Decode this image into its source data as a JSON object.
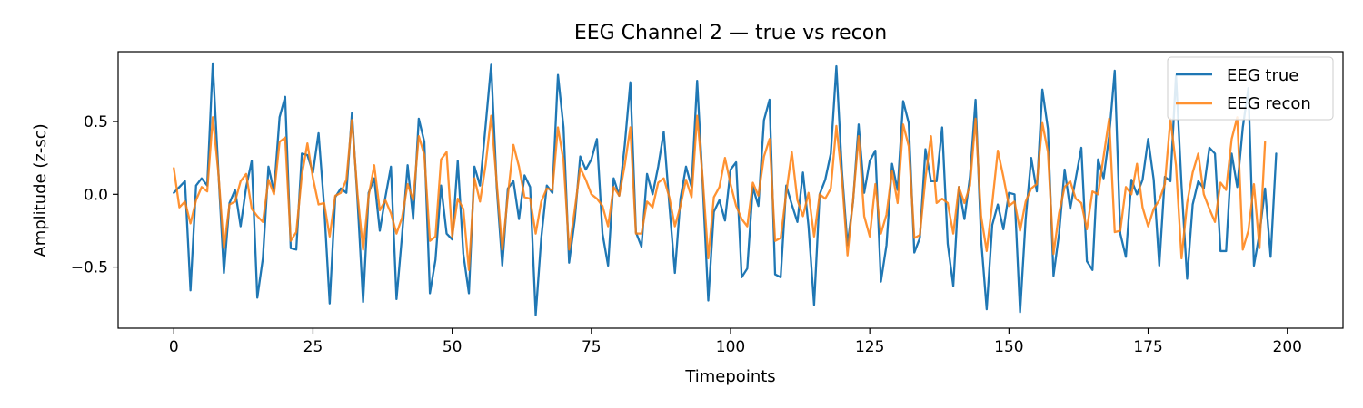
{
  "chart_data": {
    "type": "line",
    "title": "EEG Channel 2 — true vs recon",
    "xlabel": "Timepoints",
    "ylabel": "Amplitude (z-sc)",
    "xlim": [
      -10,
      210
    ],
    "ylim": [
      -0.92,
      0.98
    ],
    "xticks": [
      0,
      25,
      50,
      75,
      100,
      125,
      150,
      175,
      200
    ],
    "xtick_labels": [
      "0",
      "25",
      "50",
      "75",
      "100",
      "125",
      "150",
      "175",
      "200"
    ],
    "yticks": [
      -0.5,
      0.0,
      0.5
    ],
    "ytick_labels": [
      "−0.5",
      "0.0",
      "0.5"
    ],
    "grid": false,
    "legend_position": "top-right",
    "series": [
      {
        "name": "EEG true",
        "color": "#1f77b4",
        "values": [
          0.01,
          0.05,
          0.09,
          -0.66,
          0.06,
          0.11,
          0.06,
          0.9,
          0.16,
          -0.54,
          -0.06,
          0.03,
          -0.22,
          0.05,
          0.23,
          -0.71,
          -0.44,
          0.19,
          0.02,
          0.53,
          0.67,
          -0.37,
          -0.38,
          0.28,
          0.27,
          0.15,
          0.42,
          -0.08,
          -0.75,
          -0.02,
          0.04,
          0.01,
          0.56,
          -0.04,
          -0.74,
          0.01,
          0.11,
          -0.25,
          -0.02,
          0.19,
          -0.72,
          -0.28,
          0.2,
          -0.17,
          0.52,
          0.36,
          -0.68,
          -0.45,
          0.06,
          -0.27,
          -0.31,
          0.23,
          -0.41,
          -0.68,
          0.19,
          0.06,
          0.47,
          0.89,
          0.05,
          -0.49,
          0.04,
          0.09,
          -0.17,
          0.13,
          0.05,
          -0.83,
          -0.3,
          0.06,
          0.01,
          0.82,
          0.46,
          -0.47,
          -0.18,
          0.26,
          0.17,
          0.24,
          0.38,
          -0.27,
          -0.49,
          0.11,
          -0.01,
          0.34,
          0.77,
          -0.26,
          -0.36,
          0.14,
          0.0,
          0.19,
          0.43,
          -0.07,
          -0.54,
          -0.03,
          0.19,
          0.05,
          0.78,
          0.07,
          -0.73,
          -0.12,
          -0.04,
          -0.18,
          0.17,
          0.22,
          -0.57,
          -0.51,
          0.05,
          -0.08,
          0.51,
          0.65,
          -0.55,
          -0.57,
          0.06,
          -0.07,
          -0.19,
          0.15,
          -0.22,
          -0.76,
          0.0,
          0.1,
          0.28,
          0.88,
          0.16,
          -0.35,
          -0.05,
          0.48,
          0.01,
          0.23,
          0.3,
          -0.6,
          -0.35,
          0.21,
          0.03,
          0.64,
          0.49,
          -0.4,
          -0.3,
          0.31,
          0.09,
          0.09,
          0.46,
          -0.34,
          -0.63,
          0.05,
          -0.17,
          0.12,
          0.65,
          -0.31,
          -0.79,
          -0.21,
          -0.07,
          -0.24,
          0.01,
          0.0,
          -0.81,
          -0.17,
          0.25,
          0.02,
          0.72,
          0.45,
          -0.56,
          -0.27,
          0.17,
          -0.1,
          0.11,
          0.32,
          -0.46,
          -0.52,
          0.24,
          0.11,
          0.4,
          0.85,
          -0.27,
          -0.43,
          0.1,
          0.0,
          0.1,
          0.38,
          0.1,
          -0.49,
          0.12,
          0.09,
          0.82,
          0.06,
          -0.58,
          -0.07,
          0.09,
          0.04,
          0.32,
          0.28,
          -0.39,
          -0.39,
          0.28,
          0.05,
          0.46,
          0.73,
          -0.49,
          -0.27,
          0.04,
          -0.43,
          0.28
        ]
      },
      {
        "name": "EEG recon",
        "color": "#ff7f0e",
        "values": [
          0.18,
          -0.09,
          -0.05,
          -0.2,
          -0.04,
          0.05,
          0.02,
          0.53,
          0.15,
          -0.37,
          -0.07,
          -0.05,
          0.09,
          0.14,
          -0.1,
          -0.15,
          -0.19,
          0.1,
          0.0,
          0.36,
          0.39,
          -0.32,
          -0.26,
          0.13,
          0.35,
          0.11,
          -0.07,
          -0.06,
          -0.29,
          -0.01,
          0.01,
          0.1,
          0.51,
          0.0,
          -0.38,
          -0.01,
          0.2,
          -0.11,
          -0.04,
          -0.13,
          -0.27,
          -0.16,
          0.07,
          -0.04,
          0.4,
          0.27,
          -0.32,
          -0.29,
          0.24,
          0.29,
          -0.29,
          -0.03,
          -0.1,
          -0.52,
          0.11,
          -0.05,
          0.2,
          0.54,
          0.08,
          -0.38,
          -0.01,
          0.34,
          0.19,
          -0.02,
          -0.03,
          -0.27,
          -0.05,
          0.04,
          0.03,
          0.46,
          0.23,
          -0.38,
          -0.11,
          0.18,
          0.1,
          0.0,
          -0.03,
          -0.08,
          -0.22,
          0.05,
          -0.01,
          0.2,
          0.46,
          -0.27,
          -0.27,
          -0.05,
          -0.09,
          0.08,
          0.11,
          -0.02,
          -0.22,
          -0.08,
          0.1,
          -0.02,
          0.54,
          0.11,
          -0.44,
          -0.02,
          0.05,
          0.25,
          0.07,
          -0.08,
          -0.17,
          -0.22,
          0.08,
          -0.01,
          0.26,
          0.38,
          -0.32,
          -0.3,
          0.01,
          0.29,
          -0.04,
          -0.15,
          0.01,
          -0.29,
          0.0,
          -0.03,
          0.04,
          0.47,
          0.11,
          -0.42,
          -0.04,
          0.4,
          -0.15,
          -0.29,
          0.07,
          -0.27,
          -0.14,
          0.16,
          -0.06,
          0.48,
          0.33,
          -0.3,
          -0.28,
          0.11,
          0.4,
          -0.06,
          -0.03,
          -0.06,
          -0.27,
          0.05,
          -0.06,
          0.06,
          0.52,
          -0.15,
          -0.39,
          -0.06,
          0.3,
          0.12,
          -0.08,
          -0.05,
          -0.25,
          -0.05,
          0.04,
          0.07,
          0.49,
          0.29,
          -0.41,
          -0.13,
          0.05,
          0.09,
          -0.03,
          -0.06,
          -0.24,
          0.02,
          0.0,
          0.26,
          0.52,
          -0.26,
          -0.25,
          0.05,
          0.0,
          0.21,
          -0.09,
          -0.22,
          -0.1,
          -0.04,
          0.07,
          0.52,
          0.2,
          -0.44,
          -0.06,
          0.15,
          0.28,
          0.0,
          -0.1,
          -0.19,
          0.08,
          0.03,
          0.38,
          0.53,
          -0.38,
          -0.25,
          0.07,
          -0.37,
          0.36
        ]
      }
    ]
  }
}
